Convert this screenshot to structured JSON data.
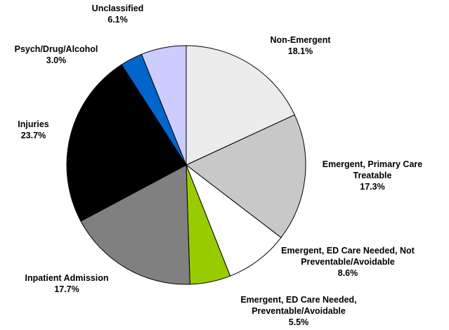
{
  "chart_data": {
    "type": "pie",
    "categories": [
      "Non-Emergent",
      "Emergent, Primary Care Treatable",
      "Emergent, ED Care Needed, Not Preventable/Avoidable",
      "Emergent, ED Care Needed, Preventable/Avoidable",
      "Inpatient Admission",
      "Injuries",
      "Psych/Drug/Alcohol",
      "Unclassified"
    ],
    "values": [
      18.1,
      17.3,
      8.6,
      5.5,
      17.7,
      23.7,
      3.0,
      6.1
    ],
    "value_labels": [
      "18.1%",
      "17.3%",
      "8.6%",
      "5.5%",
      "17.7%",
      "23.7%",
      "3.0%",
      "6.1%"
    ],
    "colors": [
      "#ececec",
      "#c8c8c8",
      "#ffffff",
      "#99cc00",
      "#808080",
      "#000000",
      "#0066cc",
      "#ccccff"
    ]
  }
}
